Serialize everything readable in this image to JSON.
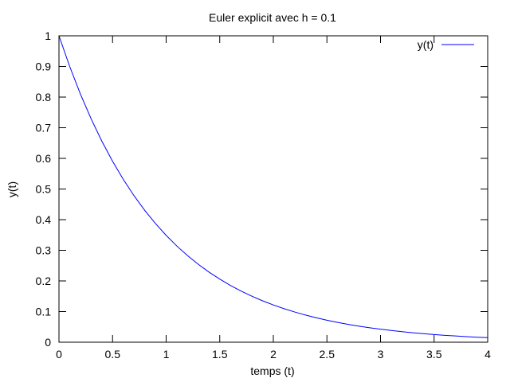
{
  "chart_data": {
    "type": "line",
    "title": "Euler explicit avec h = 0.1",
    "xlabel": "temps (t)",
    "ylabel": "y(t)",
    "xlim": [
      0,
      4
    ],
    "ylim": [
      0,
      1
    ],
    "xticks": [
      0,
      0.5,
      1,
      1.5,
      2,
      2.5,
      3,
      3.5,
      4
    ],
    "xtick_labels": [
      "0",
      "0.5",
      "1",
      "1.5",
      "2",
      "2.5",
      "3",
      "3.5",
      "4"
    ],
    "yticks": [
      0,
      0.1,
      0.2,
      0.3,
      0.4,
      0.5,
      0.6,
      0.7,
      0.8,
      0.9,
      1
    ],
    "ytick_labels": [
      "0",
      "0.1",
      "0.2",
      "0.3",
      "0.4",
      "0.5",
      "0.6",
      "0.7",
      "0.8",
      "0.9",
      "1"
    ],
    "grid": false,
    "legend_position": "top-right",
    "series": [
      {
        "name": "y(t)",
        "color": "#0000ff",
        "x": [
          0,
          0.1,
          0.2,
          0.3,
          0.4,
          0.5,
          0.6,
          0.7,
          0.8,
          0.9,
          1.0,
          1.1,
          1.2,
          1.3,
          1.4,
          1.5,
          1.6,
          1.7,
          1.8,
          1.9,
          2.0,
          2.1,
          2.2,
          2.3,
          2.4,
          2.5,
          2.6,
          2.7,
          2.8,
          2.9,
          3.0,
          3.1,
          3.2,
          3.3,
          3.4,
          3.5,
          3.6,
          3.7,
          3.8,
          3.9,
          4.0
        ],
        "y": [
          1.0,
          0.9,
          0.81,
          0.729,
          0.6561,
          0.5905,
          0.5314,
          0.4783,
          0.4305,
          0.3874,
          0.3487,
          0.3138,
          0.2824,
          0.2542,
          0.2288,
          0.2059,
          0.1853,
          0.1668,
          0.1501,
          0.1351,
          0.1216,
          0.1094,
          0.0985,
          0.0886,
          0.0798,
          0.0718,
          0.0646,
          0.0581,
          0.0523,
          0.0471,
          0.0424,
          0.0382,
          0.0343,
          0.0309,
          0.0278,
          0.025,
          0.0225,
          0.0203,
          0.0182,
          0.0164,
          0.0148
        ]
      }
    ]
  }
}
